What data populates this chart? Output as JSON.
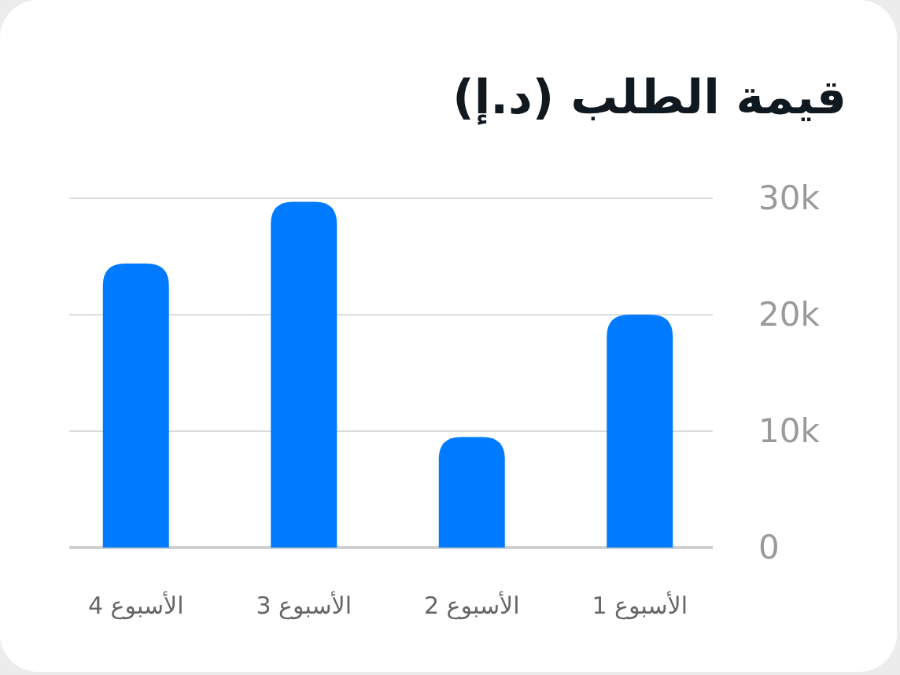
{
  "chart_data": {
    "type": "bar",
    "title": "قيمة الطلب (د.إ)",
    "categories": [
      "الأسبوع 4",
      "الأسبوع 3",
      "الأسبوع 2",
      "الأسبوع 1"
    ],
    "values": [
      24400,
      29700,
      9500,
      20000
    ],
    "color": "#007bff",
    "ylim": [
      0,
      30000
    ],
    "yticks": [
      0,
      {
        "value": 10000,
        "label": "10k"
      },
      {
        "value": 20000,
        "label": "20k"
      },
      {
        "value": 30000,
        "label": "30k"
      }
    ],
    "grid": "y"
  }
}
